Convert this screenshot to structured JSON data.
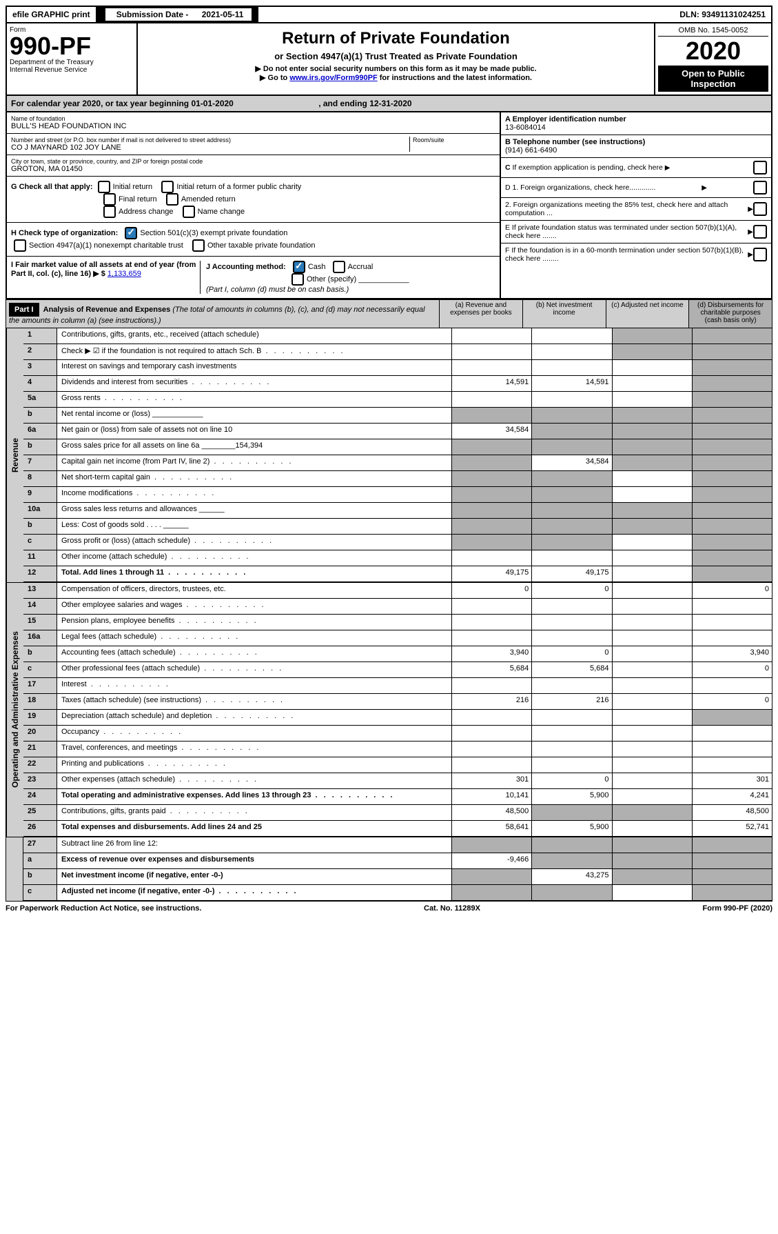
{
  "top": {
    "efile": "efile GRAPHIC print",
    "submission_label": "Submission Date - ",
    "submission_date": "2021-05-11",
    "dln_label": "DLN: ",
    "dln": "93491131024251"
  },
  "header": {
    "form_label": "Form",
    "form_number": "990-PF",
    "dept1": "Department of the Treasury",
    "dept2": "Internal Revenue Service",
    "title": "Return of Private Foundation",
    "subtitle": "or Section 4947(a)(1) Trust Treated as Private Foundation",
    "note1": "▶ Do not enter social security numbers on this form as it may be made public.",
    "note2_pre": "▶ Go to ",
    "note2_link": "www.irs.gov/Form990PF",
    "note2_post": " for instructions and the latest information.",
    "omb": "OMB No. 1545-0052",
    "year": "2020",
    "inspection": "Open to Public Inspection"
  },
  "calendar": {
    "text_pre": "For calendar year 2020, or tax year beginning ",
    "begin": "01-01-2020",
    "text_mid": " , and ending ",
    "end": "12-31-2020"
  },
  "entity": {
    "name_label": "Name of foundation",
    "name": "BULL'S HEAD FOUNDATION INC",
    "addr_label": "Number and street (or P.O. box number if mail is not delivered to street address)",
    "room_label": "Room/suite",
    "addr": "CO J MAYNARD 102 JOY LANE",
    "city_label": "City or town, state or province, country, and ZIP or foreign postal code",
    "city": "GROTON, MA  01450",
    "ein_label": "A Employer identification number",
    "ein": "13-6084014",
    "phone_label": "B Telephone number (see instructions)",
    "phone": "(914) 661-6490",
    "c_label": "C If exemption application is pending, check here",
    "d1": "D 1. Foreign organizations, check here.............",
    "d2": "2. Foreign organizations meeting the 85% test, check here and attach computation ...",
    "e_label": "E  If private foundation status was terminated under section 507(b)(1)(A), check here .......",
    "f_label": "F  If the foundation is in a 60-month termination under section 507(b)(1)(B), check here ........"
  },
  "checks": {
    "g_label": "G Check all that apply:",
    "initial": "Initial return",
    "initial_former": "Initial return of a former public charity",
    "final": "Final return",
    "amended": "Amended return",
    "address": "Address change",
    "name_change": "Name change",
    "h_label": "H Check type of organization:",
    "h1": "Section 501(c)(3) exempt private foundation",
    "h2": "Section 4947(a)(1) nonexempt charitable trust",
    "h3": "Other taxable private foundation",
    "i_label": "I Fair market value of all assets at end of year (from Part II, col. (c), line 16) ▶ $ ",
    "i_value": "1,133,659",
    "j_label": "J Accounting method:",
    "j_cash": "Cash",
    "j_accrual": "Accrual",
    "j_other": "Other (specify)",
    "j_note": "(Part I, column (d) must be on cash basis.)"
  },
  "part1": {
    "label": "Part I",
    "title": "Analysis of Revenue and Expenses",
    "title_note": " (The total of amounts in columns (b), (c), and (d) may not necessarily equal the amounts in column (a) (see instructions).)",
    "col_a": "(a)   Revenue and expenses per books",
    "col_b": "(b)  Net investment income",
    "col_c": "(c)  Adjusted net income",
    "col_d": "(d)  Disbursements for charitable purposes (cash basis only)"
  },
  "side_labels": {
    "revenue": "Revenue",
    "expenses": "Operating and Administrative Expenses"
  },
  "lines": [
    {
      "n": "1",
      "t": "Contributions, gifts, grants, etc., received (attach schedule)",
      "a": "",
      "b": "",
      "c_s": true,
      "d_s": true
    },
    {
      "n": "2",
      "t": "Check ▶ ☑ if the foundation is not required to attach Sch. B",
      "a": "",
      "b": "",
      "c_s": true,
      "d_s": true,
      "dot": true
    },
    {
      "n": "3",
      "t": "Interest on savings and temporary cash investments",
      "a": "",
      "b": "",
      "c": "",
      "d_s": true
    },
    {
      "n": "4",
      "t": "Dividends and interest from securities",
      "a": "14,591",
      "b": "14,591",
      "c": "",
      "d_s": true,
      "dot": true
    },
    {
      "n": "5a",
      "t": "Gross rents",
      "a": "",
      "b": "",
      "c": "",
      "d_s": true,
      "dot": true
    },
    {
      "n": "b",
      "t": "Net rental income or (loss)  ____________",
      "a_s": true,
      "b_s": true,
      "c_s": true,
      "d_s": true
    },
    {
      "n": "6a",
      "t": "Net gain or (loss) from sale of assets not on line 10",
      "a": "34,584",
      "b_s": true,
      "c_s": true,
      "d_s": true
    },
    {
      "n": "b",
      "t": "Gross sales price for all assets on line 6a ________154,394",
      "a_s": true,
      "b_s": true,
      "c_s": true,
      "d_s": true
    },
    {
      "n": "7",
      "t": "Capital gain net income (from Part IV, line 2)",
      "a_s": true,
      "b": "34,584",
      "c_s": true,
      "d_s": true,
      "dot": true
    },
    {
      "n": "8",
      "t": "Net short-term capital gain",
      "a_s": true,
      "b_s": true,
      "c": "",
      "d_s": true,
      "dot": true
    },
    {
      "n": "9",
      "t": "Income modifications",
      "a_s": true,
      "b_s": true,
      "c": "",
      "d_s": true,
      "dot": true
    },
    {
      "n": "10a",
      "t": "Gross sales less returns and allowances  ______",
      "a_s": true,
      "b_s": true,
      "c_s": true,
      "d_s": true
    },
    {
      "n": "b",
      "t": "Less: Cost of goods sold     . . . .    ______",
      "a_s": true,
      "b_s": true,
      "c_s": true,
      "d_s": true
    },
    {
      "n": "c",
      "t": "Gross profit or (loss) (attach schedule)",
      "a_s": true,
      "b_s": true,
      "c": "",
      "d_s": true,
      "dot": true
    },
    {
      "n": "11",
      "t": "Other income (attach schedule)",
      "a": "",
      "b": "",
      "c": "",
      "d_s": true,
      "dot": true
    },
    {
      "n": "12",
      "t": "Total. Add lines 1 through 11",
      "a": "49,175",
      "b": "49,175",
      "c": "",
      "d_s": true,
      "bold": true,
      "dot": true
    }
  ],
  "exp_lines": [
    {
      "n": "13",
      "t": "Compensation of officers, directors, trustees, etc.",
      "a": "0",
      "b": "0",
      "c": "",
      "d": "0"
    },
    {
      "n": "14",
      "t": "Other employee salaries and wages",
      "dot": true
    },
    {
      "n": "15",
      "t": "Pension plans, employee benefits",
      "dot": true
    },
    {
      "n": "16a",
      "t": "Legal fees (attach schedule)",
      "dot": true
    },
    {
      "n": "b",
      "t": "Accounting fees (attach schedule)",
      "a": "3,940",
      "b": "0",
      "c": "",
      "d": "3,940",
      "dot": true
    },
    {
      "n": "c",
      "t": "Other professional fees (attach schedule)",
      "a": "5,684",
      "b": "5,684",
      "c": "",
      "d": "0",
      "dot": true
    },
    {
      "n": "17",
      "t": "Interest",
      "dot": true
    },
    {
      "n": "18",
      "t": "Taxes (attach schedule) (see instructions)",
      "a": "216",
      "b": "216",
      "c": "",
      "d": "0",
      "dot": true
    },
    {
      "n": "19",
      "t": "Depreciation (attach schedule) and depletion",
      "d_s": true,
      "dot": true
    },
    {
      "n": "20",
      "t": "Occupancy",
      "dot": true
    },
    {
      "n": "21",
      "t": "Travel, conferences, and meetings",
      "dot": true
    },
    {
      "n": "22",
      "t": "Printing and publications",
      "dot": true
    },
    {
      "n": "23",
      "t": "Other expenses (attach schedule)",
      "a": "301",
      "b": "0",
      "c": "",
      "d": "301",
      "dot": true
    },
    {
      "n": "24",
      "t": "Total operating and administrative expenses. Add lines 13 through 23",
      "a": "10,141",
      "b": "5,900",
      "c": "",
      "d": "4,241",
      "bold": true,
      "dot": true
    },
    {
      "n": "25",
      "t": "Contributions, gifts, grants paid",
      "a": "48,500",
      "b_s": true,
      "c_s": true,
      "d": "48,500",
      "dot": true
    },
    {
      "n": "26",
      "t": "Total expenses and disbursements. Add lines 24 and 25",
      "a": "58,641",
      "b": "5,900",
      "c": "",
      "d": "52,741",
      "bold": true
    }
  ],
  "final_lines": [
    {
      "n": "27",
      "t": "Subtract line 26 from line 12:",
      "a_s": true,
      "b_s": true,
      "c_s": true,
      "d_s": true
    },
    {
      "n": "a",
      "t": "Excess of revenue over expenses and disbursements",
      "a": "-9,466",
      "b_s": true,
      "c_s": true,
      "d_s": true,
      "bold": true
    },
    {
      "n": "b",
      "t": "Net investment income (if negative, enter -0-)",
      "a_s": true,
      "b": "43,275",
      "c_s": true,
      "d_s": true,
      "bold": true
    },
    {
      "n": "c",
      "t": "Adjusted net income (if negative, enter -0-)",
      "a_s": true,
      "b_s": true,
      "c": "",
      "d_s": true,
      "bold": true,
      "dot": true
    }
  ],
  "footer": {
    "left": "For Paperwork Reduction Act Notice, see instructions.",
    "center": "Cat. No. 11289X",
    "right": "Form 990-PF (2020)"
  }
}
